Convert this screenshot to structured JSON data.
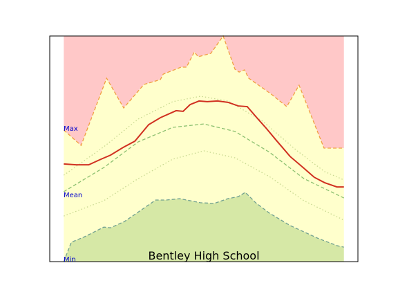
{
  "chart_data": {
    "type": "band",
    "title": "Bentley High School",
    "labels": [
      "Max",
      "Mean",
      "Min"
    ],
    "xlim": [
      -5,
      105
    ],
    "ylim": [
      0,
      100
    ],
    "band_fill": "#ffffcc",
    "series": [
      {
        "color": "#f0a040",
        "style": "dashed",
        "fill_above": "#ffc8c8",
        "x": [
          0,
          6.2,
          15.3,
          21.4,
          28.6,
          34.5,
          35.5,
          41.9,
          43.8,
          46.6,
          48.0,
          52.5,
          56.9,
          61.1,
          62.6,
          64.5,
          66.0,
          74.1,
          79.6,
          84.0,
          92.9,
          100
        ],
        "values": [
          58.3,
          51.5,
          81.3,
          68.1,
          78.5,
          80.7,
          83.1,
          86.2,
          86.2,
          92.9,
          90.8,
          92.3,
          100,
          85.3,
          84.0,
          85.0,
          81.3,
          74.2,
          68.7,
          78.2,
          50.3,
          50.3
        ]
      },
      {
        "color": "#c8d890",
        "style": "dotted",
        "x": [
          0,
          14.3,
          26.6,
          38.9,
          48.8,
          58.6,
          70.9,
          83.3,
          93.1,
          100
        ],
        "values": [
          38.3,
          50.9,
          63.2,
          70.9,
          73.3,
          71.2,
          62.3,
          49.1,
          39.9,
          36.2
        ]
      },
      {
        "color": "#8cc070",
        "style": "dashed",
        "x": [
          0,
          14.3,
          26.6,
          38.9,
          50,
          61.1,
          73.4,
          85.7,
          100
        ],
        "values": [
          31.0,
          41.7,
          53.1,
          59.5,
          61.0,
          57.7,
          48.5,
          36.8,
          28.2
        ]
      },
      {
        "color": "#c8d890",
        "style": "dotted",
        "x": [
          0,
          14.3,
          26.6,
          38.9,
          50,
          61.1,
          73.4,
          85.7,
          100
        ],
        "values": [
          20.2,
          27.0,
          36.8,
          45.4,
          49.1,
          46.0,
          37.7,
          27.0,
          18.4
        ]
      },
      {
        "color": "#d03020",
        "style": "solid",
        "x": [
          0,
          4.4,
          8.9,
          13.3,
          16.7,
          21.2,
          25.4,
          30.3,
          34.5,
          40.1,
          42.6,
          45.1,
          48.3,
          51.2,
          54.9,
          58.6,
          62.3,
          65.5,
          68.9,
          72.2,
          75.9,
          80.8,
          85.7,
          89.4,
          93.1,
          97.5,
          100
        ],
        "values": [
          43.3,
          42.9,
          42.9,
          45.4,
          47.2,
          50.6,
          53.4,
          60.7,
          63.8,
          66.9,
          66.6,
          69.6,
          71.2,
          70.9,
          71.2,
          70.6,
          69.0,
          68.7,
          63.8,
          59.2,
          53.7,
          46.6,
          41.4,
          37.4,
          35.0,
          33.1,
          33.1
        ]
      },
      {
        "color": "#70a090",
        "style": "dashed",
        "fill_below": "#d6e8a6",
        "x": [
          0,
          2.7,
          7.4,
          14.3,
          16.7,
          21.7,
          27.8,
          32.8,
          36.5,
          41.4,
          48.8,
          53.7,
          58.6,
          62.3,
          64.8,
          68.5,
          73.4,
          80.8,
          90.6,
          97.5,
          100
        ],
        "values": [
          0,
          8.6,
          11.0,
          15.3,
          15.0,
          17.8,
          23.0,
          27.3,
          27.3,
          27.9,
          26.1,
          25.8,
          27.9,
          28.8,
          30.7,
          26.1,
          21.5,
          16.0,
          10.4,
          7.1,
          6.4
        ]
      }
    ]
  }
}
